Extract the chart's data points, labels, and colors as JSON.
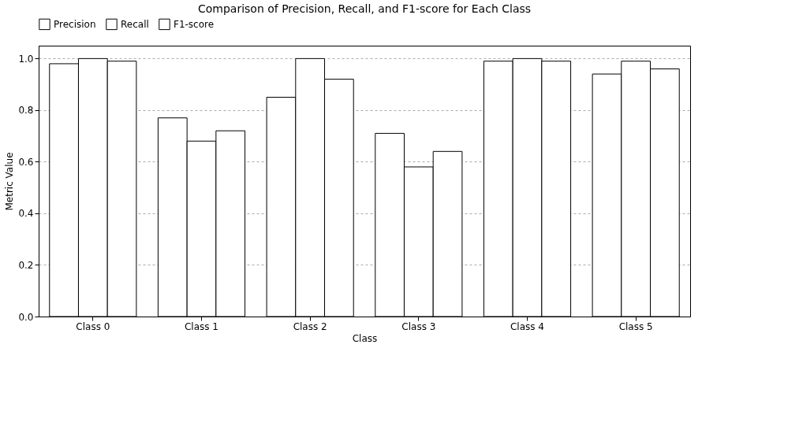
{
  "chart_data": {
    "type": "bar",
    "title": "Comparison of Precision, Recall, and F1-score for Each Class",
    "xlabel": "Class",
    "ylabel": "Metric Value",
    "categories": [
      "Class 0",
      "Class 1",
      "Class 2",
      "Class 3",
      "Class 4",
      "Class 5"
    ],
    "series": [
      {
        "name": "Precision",
        "color": "#ffffff",
        "values": [
          0.98,
          0.77,
          0.85,
          0.71,
          0.99,
          0.94
        ]
      },
      {
        "name": "Recall",
        "color": "#ffffff",
        "values": [
          1.0,
          0.68,
          1.0,
          0.58,
          1.0,
          0.99
        ]
      },
      {
        "name": "F1-score",
        "color": "#ffffff",
        "values": [
          0.99,
          0.72,
          0.92,
          0.64,
          0.99,
          0.96
        ]
      }
    ],
    "ylim": [
      0,
      1.05
    ],
    "yticks": [
      {
        "value": 0,
        "label": "0.0"
      },
      {
        "value": 0.2,
        "label": "0.2"
      },
      {
        "value": 0.4,
        "label": "0.4"
      },
      {
        "value": 0.6,
        "label": "0.6"
      },
      {
        "value": 0.8,
        "label": "0.8"
      },
      {
        "value": 1.0,
        "label": "1.0"
      }
    ],
    "grid": "y",
    "legend": "top"
  }
}
